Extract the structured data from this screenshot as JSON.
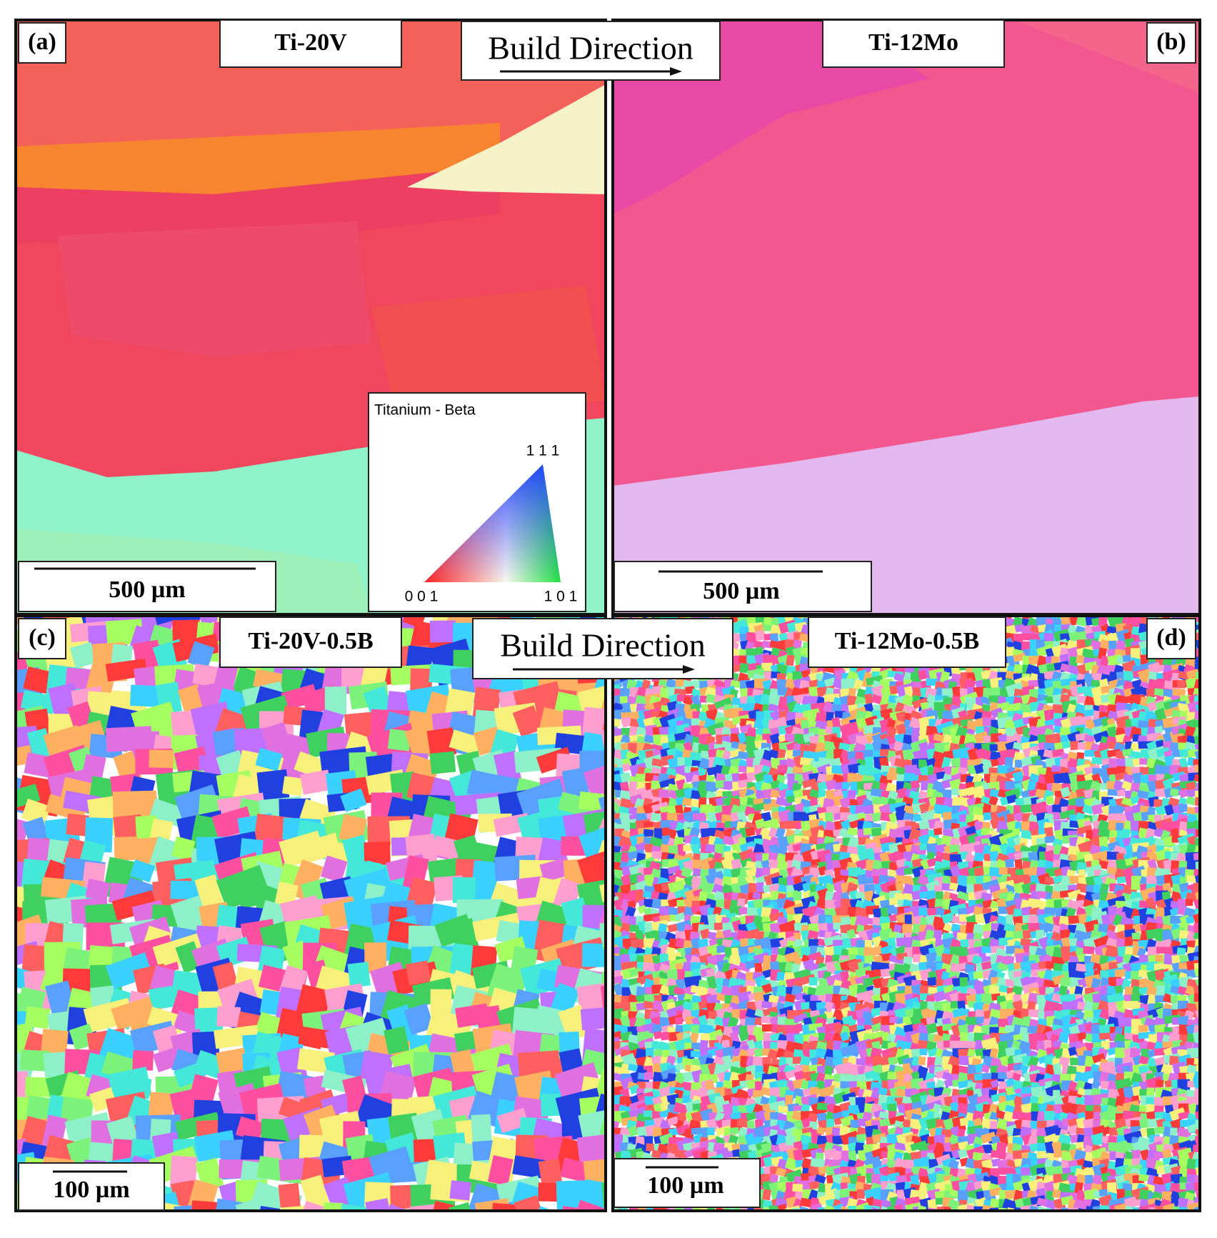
{
  "panels": [
    {
      "label": "(a)",
      "title": "Ti-20V",
      "scale_bar": "500 µm"
    },
    {
      "label": "(b)",
      "title": "Ti-12Mo",
      "scale_bar": "500 µm"
    },
    {
      "label": "(c)",
      "title": "Ti-20V-0.5B",
      "scale_bar": "100 µm"
    },
    {
      "label": "(d)",
      "title": "Ti-12Mo-0.5B",
      "scale_bar": "100 µm"
    }
  ],
  "build_direction_labels": [
    "Build Direction",
    "Build Direction"
  ],
  "legend": {
    "title": "Titanium - Beta",
    "corner_111": "1 1 1",
    "corner_001": "0 0 1",
    "corner_101": "1 0 1"
  }
}
